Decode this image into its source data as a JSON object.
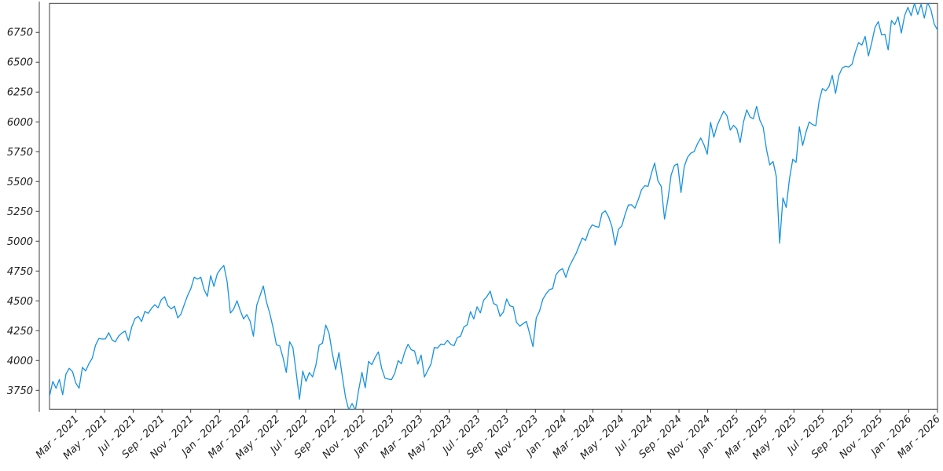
{
  "chart_data": {
    "type": "line",
    "title": "",
    "xlabel": "",
    "ylabel": "",
    "grid": false,
    "legend": "none",
    "background_color": "#ffffff",
    "line_color": "#1792e0",
    "axis_color": "#3f3f3f",
    "tick_text_color": "#212121",
    "x_tick_labels": [
      "Mar - 2021",
      "May - 2021",
      "Jul - 2021",
      "Sep - 2021",
      "Nov - 2021",
      "Jan - 2022",
      "Mar - 2022",
      "May - 2022",
      "Jul - 2022",
      "Sep - 2022",
      "Nov - 2022",
      "Jan - 2023",
      "Mar - 2023",
      "May - 2023",
      "Jul - 2023",
      "Sep - 2023",
      "Nov - 2023",
      "Jan - 2024",
      "Mar - 2024",
      "May - 2024",
      "Jul - 2024",
      "Sep - 2024",
      "Nov - 2024",
      "Jan - 2025",
      "Mar - 2025",
      "May - 2025",
      "Jul - 2025",
      "Sep - 2025",
      "Nov - 2025",
      "Jan - 2026",
      "Mar - 2026"
    ],
    "y_tick_values": [
      3750,
      4000,
      4250,
      4500,
      4750,
      5000,
      5250,
      5500,
      5750,
      6000,
      6250,
      6500,
      6750
    ],
    "ylim": [
      3592,
      6993
    ],
    "x_start_label": "Jan 2021",
    "x_end_label": "Mar 2026",
    "sampling": "weekly",
    "series": [
      {
        "name": "price",
        "values": [
          3701,
          3825,
          3768,
          3841,
          3714,
          3887,
          3935,
          3907,
          3811,
          3768,
          3943,
          3913,
          3975,
          4020,
          4129,
          4185,
          4180,
          4181,
          4233,
          4174,
          4156,
          4204,
          4230,
          4247,
          4166,
          4281,
          4352,
          4370,
          4327,
          4412,
          4395,
          4437,
          4468,
          4442,
          4509,
          4535,
          4459,
          4433,
          4455,
          4357,
          4391,
          4471,
          4545,
          4605,
          4698,
          4683,
          4698,
          4595,
          4538,
          4712,
          4621,
          4726,
          4766,
          4797,
          4663,
          4398,
          4432,
          4501,
          4419,
          4349,
          4385,
          4329,
          4204,
          4463,
          4543,
          4625,
          4488,
          4393,
          4272,
          4132,
          4123,
          4024,
          3901,
          4158,
          4109,
          3900,
          3675,
          3912,
          3825,
          3899,
          3863,
          3962,
          4130,
          4145,
          4297,
          4228,
          4058,
          3924,
          4067,
          3873,
          3693,
          3586,
          3640,
          3583,
          3753,
          3901,
          3771,
          3993,
          3965,
          4026,
          4072,
          3934,
          3852,
          3845,
          3840,
          3895,
          3999,
          3973,
          4071,
          4136,
          4090,
          4079,
          3970,
          4046,
          3862,
          3917,
          3971,
          4109,
          4105,
          4138,
          4134,
          4169,
          4136,
          4124,
          4192,
          4205,
          4282,
          4299,
          4410,
          4348,
          4450,
          4399,
          4505,
          4536,
          4582,
          4478,
          4464,
          4370,
          4406,
          4516,
          4458,
          4450,
          4320,
          4288,
          4309,
          4328,
          4224,
          4117,
          4358,
          4415,
          4514,
          4559,
          4594,
          4604,
          4719,
          4754,
          4770,
          4697,
          4784,
          4840,
          4891,
          4959,
          5027,
          5006,
          5089,
          5137,
          5124,
          5117,
          5234,
          5254,
          5204,
          5123,
          4967,
          5100,
          5128,
          5223,
          5303,
          5305,
          5277,
          5347,
          5431,
          5465,
          5460,
          5567,
          5655,
          5505,
          5459,
          5186,
          5344,
          5554,
          5635,
          5648,
          5408,
          5626,
          5703,
          5738,
          5751,
          5815,
          5865,
          5808,
          5729,
          5996,
          5871,
          5969,
          6032,
          6090,
          6051,
          5931,
          5971,
          5942,
          5827,
          5997,
          6101,
          6041,
          6026,
          6130,
          6013,
          5955,
          5770,
          5639,
          5668,
          5540,
          4983,
          5363,
          5283,
          5525,
          5687,
          5660,
          5958,
          5803,
          5912,
          6000,
          5977,
          5968,
          6173,
          6279,
          6260,
          6297,
          6389,
          6238,
          6389,
          6450,
          6467,
          6460,
          6482,
          6584,
          6664,
          6644,
          6716,
          6553,
          6664,
          6792,
          6840,
          6729,
          6734,
          6603,
          6849,
          6815,
          6880,
          6744,
          6890,
          6960,
          6890,
          6995,
          6900,
          6985,
          6870,
          7000,
          6940,
          6820,
          6770
        ]
      }
    ]
  }
}
